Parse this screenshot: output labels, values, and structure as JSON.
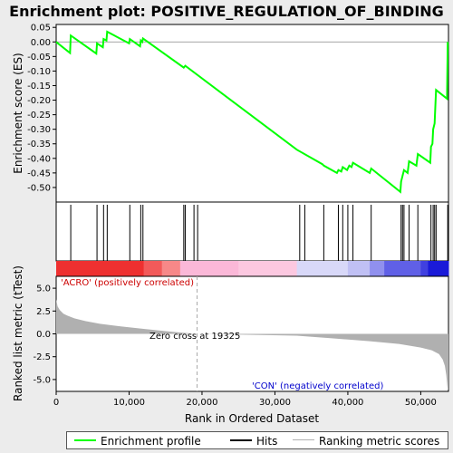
{
  "chart_data": {
    "type": "line",
    "title": "Enrichment plot: POSITIVE_REGULATION_OF_BINDING",
    "colors": {
      "profile": "#00ff00",
      "hits": "#000000",
      "ranking": "#b0b0b0",
      "positive_bar": "#ff0000",
      "negative_bar": "#0000ff",
      "background": "#ececec"
    },
    "top_panel": {
      "ylabel": "Enrichment score (ES)",
      "ylim": [
        -0.55,
        0.06
      ],
      "yticks": [
        0.05,
        0.0,
        -0.05,
        -0.1,
        -0.15,
        -0.2,
        -0.25,
        -0.3,
        -0.35,
        -0.4,
        -0.45,
        -0.5
      ],
      "ytick_labels": [
        "0.05",
        "0.00",
        "-0.05",
        "-0.10",
        "-0.15",
        "-0.20",
        "-0.25",
        "-0.30",
        "-0.35",
        "-0.40",
        "-0.45",
        "-0.50"
      ],
      "profile": {
        "x": [
          0,
          1900,
          2000,
          5500,
          5600,
          6400,
          6500,
          6900,
          7000,
          10000,
          10100,
          11500,
          11600,
          11800,
          11900,
          17500,
          17700,
          33000,
          36500,
          36700,
          38500,
          38700,
          39100,
          39300,
          39900,
          40200,
          40500,
          40700,
          43000,
          43200,
          47200,
          47300,
          47500,
          47700,
          48200,
          48400,
          49400,
          49600,
          51300,
          51400,
          51600,
          51700,
          51900,
          52100,
          53600,
          53700
        ],
        "y": [
          0.0,
          -0.038,
          0.022,
          -0.04,
          -0.005,
          -0.018,
          0.01,
          0.005,
          0.035,
          -0.005,
          0.01,
          -0.015,
          0.005,
          0.0,
          0.012,
          -0.088,
          -0.082,
          -0.37,
          -0.42,
          -0.425,
          -0.45,
          -0.44,
          -0.445,
          -0.43,
          -0.44,
          -0.425,
          -0.43,
          -0.415,
          -0.45,
          -0.435,
          -0.515,
          -0.48,
          -0.46,
          -0.44,
          -0.45,
          -0.41,
          -0.425,
          -0.385,
          -0.415,
          -0.36,
          -0.35,
          -0.3,
          -0.28,
          -0.165,
          -0.195,
          0.0
        ]
      }
    },
    "hits": [
      2000,
      5600,
      6500,
      7000,
      10100,
      11600,
      11900,
      17500,
      17700,
      18900,
      19400,
      33400,
      34100,
      36700,
      38700,
      39300,
      40000,
      40700,
      43200,
      47300,
      47500,
      47700,
      48400,
      49600,
      51400,
      51700,
      51900,
      52100,
      53700
    ],
    "xlim": [
      0,
      53800
    ],
    "x_ticks": [
      0,
      10000,
      20000,
      30000,
      40000,
      50000
    ],
    "x_tick_labels": [
      "0",
      "10,000",
      "20,000",
      "30,000",
      "40,000",
      "50,000"
    ],
    "xlabel": "Rank in Ordered Dataset",
    "bottom_panel": {
      "ylabel": "Ranked list metric (tTest)",
      "ylim": [
        -6.3,
        6.3
      ],
      "yticks": [
        5.0,
        2.5,
        0.0,
        -2.5,
        -5.0
      ],
      "ytick_labels": [
        "5.0",
        "2.5",
        "0.0",
        "-2.5",
        "-5.0"
      ],
      "metric": {
        "x": [
          0,
          200,
          500,
          1000,
          1500,
          2500,
          4000,
          6000,
          9000,
          12000,
          15000,
          17000,
          18500,
          19325,
          20000,
          33000,
          38000,
          43000,
          47000,
          50000,
          51500,
          52500,
          53000,
          53300,
          53500,
          53700,
          53800
        ],
        "y": [
          3.8,
          3.0,
          2.6,
          2.2,
          2.0,
          1.7,
          1.4,
          1.1,
          0.8,
          0.55,
          0.3,
          0.15,
          0.05,
          0.0,
          0.0,
          -0.2,
          -0.5,
          -0.8,
          -1.1,
          -1.5,
          -1.8,
          -2.2,
          -2.8,
          -3.5,
          -4.5,
          -6.1,
          -6.1
        ]
      },
      "zero_cross": 19325,
      "zero_cross_label": "Zero cross at 19325",
      "pos_label": "'ACRO' (positively correlated)",
      "neg_label": "'CON' (negatively correlated)"
    },
    "heatmap_bar": {
      "segments": [
        {
          "from": 0,
          "to": 12000,
          "color": "#ee3030"
        },
        {
          "from": 12000,
          "to": 14500,
          "color": "#f25a5a"
        },
        {
          "from": 14500,
          "to": 17000,
          "color": "#f78888"
        },
        {
          "from": 17000,
          "to": 25000,
          "color": "#fbb8d8"
        },
        {
          "from": 25000,
          "to": 33000,
          "color": "#fcc8e0"
        },
        {
          "from": 33000,
          "to": 40000,
          "color": "#d8d8f8"
        },
        {
          "from": 40000,
          "to": 43000,
          "color": "#c0c0f4"
        },
        {
          "from": 43000,
          "to": 45000,
          "color": "#9090ee"
        },
        {
          "from": 45000,
          "to": 50000,
          "color": "#6060e6"
        },
        {
          "from": 50000,
          "to": 51000,
          "color": "#4040e0"
        },
        {
          "from": 51000,
          "to": 53800,
          "color": "#1a1ad8"
        }
      ]
    },
    "legend": {
      "entries": [
        {
          "label": "Enrichment profile",
          "color": "#00ff00"
        },
        {
          "label": "Hits",
          "color": "#000000"
        },
        {
          "label": "Ranking metric scores",
          "color": "#b0b0b0"
        }
      ]
    }
  }
}
